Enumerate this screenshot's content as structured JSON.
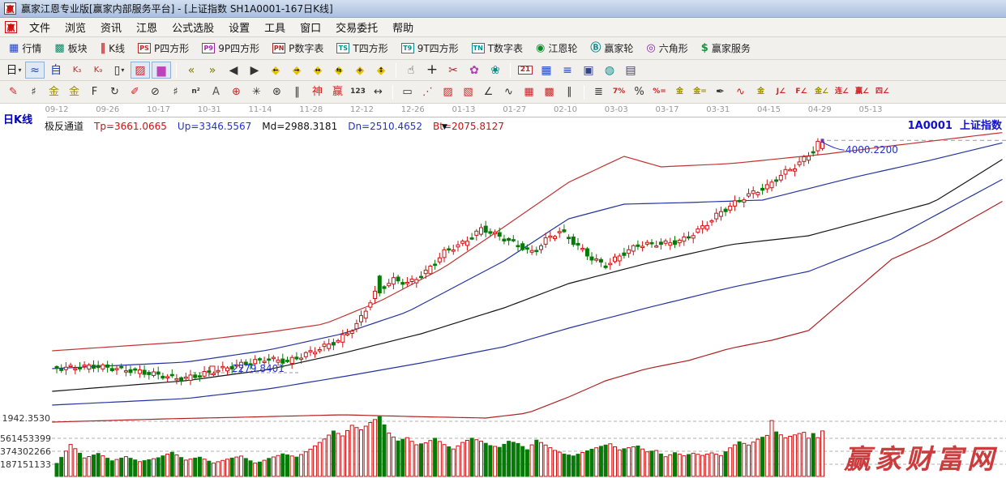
{
  "window": {
    "logo": "赢",
    "title": "赢家江恩专业版[赢家内部服务平台] - [上证指数  SH1A0001-167日K线]"
  },
  "menu": {
    "items": [
      "文件",
      "浏览",
      "资讯",
      "江恩",
      "公式选股",
      "设置",
      "工具",
      "窗口",
      "交易委托",
      "帮助"
    ]
  },
  "toolbar_main": [
    {
      "name": "quotes",
      "label": "行情",
      "icon": "▦",
      "color": "#2244bb"
    },
    {
      "name": "sectors",
      "label": "板块",
      "icon": "▩",
      "color": "#0a8a6a"
    },
    {
      "name": "kline",
      "label": "K线",
      "icon": "‖",
      "color": "#cc2222"
    },
    {
      "name": "p-square",
      "label": "P四方形",
      "icon": "PS",
      "color": "#cc2222",
      "boxed": true
    },
    {
      "name": "9p-square",
      "label": "9P四方形",
      "icon": "P9",
      "color": "#aa22aa",
      "boxed": true
    },
    {
      "name": "p-table",
      "label": "P数字表",
      "icon": "PN",
      "color": "#aa2222",
      "boxed": true
    },
    {
      "name": "t-square",
      "label": "T四方形",
      "icon": "TS",
      "color": "#0a8a8a",
      "boxed": true
    },
    {
      "name": "9t-square",
      "label": "9T四方形",
      "icon": "T9",
      "color": "#0a8a8a",
      "boxed": true
    },
    {
      "name": "t-table",
      "label": "T数字表",
      "icon": "TN",
      "color": "#0a8a8a",
      "boxed": true
    },
    {
      "name": "gann-wheel",
      "label": "江恩轮",
      "icon": "◉",
      "color": "#0a8a2a"
    },
    {
      "name": "winner-wheel",
      "label": "赢家轮",
      "icon": "Ⓑ",
      "color": "#0a8a8a"
    },
    {
      "name": "hexagon",
      "label": "六角形",
      "icon": "◎",
      "color": "#8822aa"
    },
    {
      "name": "winner-service",
      "label": "赢家服务",
      "icon": "$",
      "color": "#0a9a3a"
    }
  ],
  "toolbar_nav": [
    {
      "n": "period-day",
      "g": "日",
      "c": "#222222",
      "drop": true
    },
    {
      "n": "chart-mode",
      "g": "≈",
      "c": "#2244bb",
      "pressed": true
    },
    {
      "n": "f10-info",
      "g": "自",
      "c": "#2244bb"
    },
    {
      "n": "kline-3",
      "g": "K₃",
      "c": "#cc2222",
      "small": true
    },
    {
      "n": "kline-9",
      "g": "K₉",
      "c": "#cc2222",
      "small": true
    },
    {
      "n": "candle-style",
      "g": "▯",
      "c": "#222222",
      "drop": true
    },
    {
      "n": "gann-grade",
      "g": "▨",
      "c": "#cc2222",
      "pressed": true
    },
    {
      "n": "volume-colored",
      "g": "▆",
      "c": "#bb44bb",
      "pressed": true
    },
    {
      "sep": true
    },
    {
      "n": "first-page",
      "g": "«",
      "c": "#7a7a00"
    },
    {
      "n": "last-page",
      "g": "»",
      "c": "#7a7a00"
    },
    {
      "n": "prev-bar",
      "g": "◀",
      "c": "#333333"
    },
    {
      "n": "next-bar",
      "g": "▶",
      "c": "#333333"
    },
    {
      "n": "pan-left",
      "g": "◆",
      "c": "#e3c400",
      "a": "←"
    },
    {
      "n": "pan-right",
      "g": "◆",
      "c": "#e3c400",
      "a": "→"
    },
    {
      "n": "zoom-horizontal",
      "g": "◆",
      "c": "#e3c400",
      "a": "↔"
    },
    {
      "n": "zoom-swap",
      "g": "◆",
      "c": "#e3c400",
      "a": "⇆"
    },
    {
      "n": "zoom-in",
      "g": "◆",
      "c": "#e3c400",
      "a": "+"
    },
    {
      "n": "zoom-all",
      "g": "◆",
      "c": "#e3c400",
      "a": "↕"
    },
    {
      "sep": true
    },
    {
      "n": "drag-hand",
      "g": "☝",
      "c": "#333333"
    },
    {
      "n": "crosshair",
      "g": "+",
      "c": "#222222",
      "big": true
    },
    {
      "n": "measure",
      "g": "✂",
      "c": "#aa2222"
    },
    {
      "n": "pattern-match",
      "g": "✿",
      "c": "#b040b0"
    },
    {
      "n": "smart-match",
      "g": "❀",
      "c": "#0a8a8a"
    },
    {
      "sep": true
    },
    {
      "n": "calendar",
      "txt": "21",
      "c": "#cc2222"
    },
    {
      "n": "calculator",
      "g": "▦",
      "c": "#2244bb"
    },
    {
      "n": "notes",
      "g": "≡",
      "c": "#2244bb"
    },
    {
      "n": "save",
      "g": "▣",
      "c": "#334488"
    },
    {
      "n": "export-web",
      "g": "◍",
      "c": "#0a8a8a"
    },
    {
      "n": "print",
      "g": "▤",
      "c": "#444455"
    }
  ],
  "toolbar_draw": [
    {
      "n": "draw-pencil",
      "g": "✎",
      "c": "#cc2222"
    },
    {
      "n": "gann-lines",
      "g": "♯",
      "c": "#333333"
    },
    {
      "n": "gold-ratio",
      "g": "金",
      "c": "#9a8a00"
    },
    {
      "n": "gold-ratio-ext",
      "g": "金",
      "c": "#9a8a00"
    },
    {
      "n": "fibo-f",
      "g": "F",
      "c": "#333333"
    },
    {
      "n": "spiral",
      "g": "↻",
      "c": "#333333"
    },
    {
      "n": "draw-pencil-2",
      "g": "✐",
      "c": "#cc2222"
    },
    {
      "n": "gann-circle",
      "g": "⊘",
      "c": "#333333"
    },
    {
      "n": "price-lines",
      "g": "♯",
      "c": "#333333"
    },
    {
      "n": "square-n2",
      "txt": "n²",
      "c": "#333333"
    },
    {
      "n": "angle-a",
      "g": "A",
      "c": "#555555"
    },
    {
      "n": "gann-compass",
      "g": "⊕",
      "c": "#cc2222"
    },
    {
      "n": "spider-web",
      "g": "✳",
      "c": "#333333"
    },
    {
      "n": "square-web",
      "g": "⊛",
      "c": "#333333"
    },
    {
      "n": "quote-bars",
      "g": "‖",
      "c": "#333333"
    },
    {
      "n": "shen-tool",
      "g": "神",
      "c": "#cc2222"
    },
    {
      "n": "ying-tool",
      "g": "赢",
      "c": "#cc2222"
    },
    {
      "n": "ruler-123",
      "txt": "123",
      "c": "#333333"
    },
    {
      "n": "width-measure",
      "g": "↔",
      "c": "#333333"
    },
    {
      "sep": true
    },
    {
      "n": "box-select",
      "g": "▭",
      "c": "#333333"
    },
    {
      "n": "fan-lines",
      "g": "⋰",
      "c": "#cc2222"
    },
    {
      "n": "box-diagonal",
      "g": "▨",
      "c": "#cc2222"
    },
    {
      "n": "box-diagonal-2",
      "g": "▧",
      "c": "#cc2222"
    },
    {
      "n": "trend-angle",
      "g": "∠",
      "c": "#333333"
    },
    {
      "n": "zigzag-wave",
      "g": "∿",
      "c": "#333333"
    },
    {
      "n": "grid-red",
      "g": "▦",
      "c": "#cc2222"
    },
    {
      "n": "grid-dense",
      "g": "▩",
      "c": "#cc2222"
    },
    {
      "n": "parallel-lines",
      "g": "∥",
      "c": "#333333"
    },
    {
      "sep": true
    },
    {
      "n": "steps",
      "g": "≣",
      "c": "#333333"
    },
    {
      "n": "percent-7",
      "txt": "7%",
      "c": "#cc2222"
    },
    {
      "n": "percent",
      "g": "%",
      "c": "#333333"
    },
    {
      "n": "percent-line",
      "txt": "%=",
      "c": "#cc2222"
    },
    {
      "n": "gold-circle",
      "txt": "金",
      "c": "#9a8a00"
    },
    {
      "n": "gold-line",
      "txt": "金=",
      "c": "#9a8a00"
    },
    {
      "n": "brush-pen",
      "g": "✒",
      "c": "#333333"
    },
    {
      "n": "a-wave",
      "g": "∿",
      "c": "#cc2222"
    },
    {
      "n": "gold-under",
      "txt": "金",
      "c": "#9a8a00"
    },
    {
      "n": "j-angle",
      "txt": "J∠",
      "c": "#cc2222"
    },
    {
      "n": "f-angle",
      "txt": "F∠",
      "c": "#cc2222"
    },
    {
      "n": "gold-angle",
      "txt": "金∠",
      "c": "#9a8a00"
    },
    {
      "n": "lian-angle",
      "txt": "连∠",
      "c": "#cc2222"
    },
    {
      "n": "ying-angle",
      "txt": "赢∠",
      "c": "#cc2222"
    },
    {
      "n": "si-angle",
      "txt": "四∠",
      "c": "#cc2222"
    }
  ],
  "chart": {
    "panel_label": "日K线",
    "symbol": "1A0001",
    "symbol_name": "上证指数",
    "indicator": {
      "name": "极反通道",
      "params": [
        {
          "key": "Tp",
          "text": "Tp=3661.0665",
          "color": "#cc1111"
        },
        {
          "key": "Up",
          "text": "Up=3346.5567",
          "color": "#2233cc"
        },
        {
          "key": "Md",
          "text": "Md=2988.3181",
          "color": "#111111"
        },
        {
          "key": "Dn",
          "text": "Dn=2510.4652",
          "color": "#2233cc"
        },
        {
          "key": "Bt",
          "text": "Bt=2075.8127",
          "color": "#cc1111"
        }
      ]
    },
    "dates": [
      "09-12",
      "09-26",
      "10-17",
      "10-31",
      "11-14",
      "11-28",
      "12-12",
      "12-26",
      "01-13",
      "01-27",
      "02-10",
      "03-03",
      "03-17",
      "03-31",
      "04-15",
      "04-29",
      "05-13"
    ],
    "levels": {
      "last_high": "4000.2200",
      "mid": "2279.8401",
      "floor": "1942.3530"
    },
    "volume_axis": [
      "561453399",
      "374302266",
      "187151133"
    ],
    "watermark": "赢家财富网",
    "dropdown_glyph": "▼"
  },
  "chart_data": {
    "type": "candlestick",
    "title": "上证指数 SH1A0001-167日K线",
    "bars": 167,
    "x_dates": [
      "09-12",
      "09-26",
      "10-17",
      "10-31",
      "11-14",
      "11-28",
      "12-12",
      "12-26",
      "01-13",
      "01-27",
      "02-10",
      "03-03",
      "03-17",
      "03-31",
      "04-15",
      "04-29",
      "05-13"
    ],
    "price_anchors": [
      [
        0,
        2310
      ],
      [
        9,
        2328
      ],
      [
        18,
        2292
      ],
      [
        28,
        2232
      ],
      [
        37,
        2310
      ],
      [
        46,
        2382
      ],
      [
        51,
        2364
      ],
      [
        57,
        2448
      ],
      [
        62,
        2520
      ],
      [
        66,
        2640
      ],
      [
        70,
        2880
      ],
      [
        74,
        2970
      ],
      [
        77,
        2940
      ],
      [
        81,
        3030
      ],
      [
        85,
        3180
      ],
      [
        89,
        3240
      ],
      [
        93,
        3348
      ],
      [
        96,
        3300
      ],
      [
        100,
        3240
      ],
      [
        104,
        3168
      ],
      [
        107,
        3270
      ],
      [
        110,
        3330
      ],
      [
        113,
        3240
      ],
      [
        117,
        3120
      ],
      [
        120,
        3072
      ],
      [
        123,
        3150
      ],
      [
        127,
        3228
      ],
      [
        134,
        3240
      ],
      [
        137,
        3270
      ],
      [
        141,
        3360
      ],
      [
        144,
        3450
      ],
      [
        148,
        3540
      ],
      [
        151,
        3600
      ],
      [
        155,
        3660
      ],
      [
        158,
        3750
      ],
      [
        161,
        3810
      ],
      [
        163,
        3870
      ],
      [
        165,
        3930
      ],
      [
        166,
        3992
      ]
    ],
    "special_bars": {
      "70": [
        2995,
        2870,
        3005,
        2845
      ],
      "166": [
        3940,
        3988,
        4000.22,
        3925
      ]
    },
    "last_high": 4000.22,
    "key_levels": [
      4000.22,
      2279.8401,
      1942.353
    ],
    "channel": {
      "name": "极反通道",
      "Tp": 3661.0665,
      "Up": 3346.5567,
      "Md": 2988.3181,
      "Dn": 2510.4652,
      "Bt": 2075.8127,
      "lines": {
        "top": {
          "color": "#c23232",
          "pts": [
            [
              -1,
              2442
            ],
            [
              28,
              2508
            ],
            [
              46,
              2580
            ],
            [
              58,
              2640
            ],
            [
              70,
              2808
            ],
            [
              84,
              3060
            ],
            [
              97,
              3360
            ],
            [
              111,
              3690
            ],
            [
              123,
              3882
            ],
            [
              131,
              3804
            ],
            [
              146,
              3828
            ],
            [
              167,
              3900
            ],
            [
              181,
              3960
            ],
            [
              206,
              4062
            ]
          ]
        },
        "up": {
          "color": "#2333a0",
          "pts": [
            [
              -1,
              2310
            ],
            [
              28,
              2358
            ],
            [
              46,
              2448
            ],
            [
              62,
              2568
            ],
            [
              76,
              2730
            ],
            [
              86,
              2910
            ],
            [
              97,
              3108
            ],
            [
              111,
              3420
            ],
            [
              123,
              3528
            ],
            [
              137,
              3540
            ],
            [
              153,
              3558
            ],
            [
              172,
              3720
            ],
            [
              190,
              3858
            ],
            [
              206,
              3990
            ]
          ]
        },
        "md": {
          "color": "#151515",
          "pts": [
            [
              -1,
              2142
            ],
            [
              28,
              2220
            ],
            [
              46,
              2304
            ],
            [
              62,
              2424
            ],
            [
              79,
              2568
            ],
            [
              97,
              2760
            ],
            [
              111,
              2940
            ],
            [
              128,
              3090
            ],
            [
              146,
              3228
            ],
            [
              163,
              3294
            ],
            [
              190,
              3540
            ],
            [
              206,
              3880
            ]
          ]
        },
        "dn": {
          "color": "#2333a0",
          "pts": [
            [
              -1,
              2040
            ],
            [
              28,
              2088
            ],
            [
              46,
              2160
            ],
            [
              62,
              2250
            ],
            [
              79,
              2352
            ],
            [
              97,
              2472
            ],
            [
              111,
              2610
            ],
            [
              128,
              2760
            ],
            [
              146,
              2910
            ],
            [
              163,
              3030
            ],
            [
              181,
              3270
            ],
            [
              206,
              3730
            ]
          ]
        },
        "bt": {
          "color": "#b02020",
          "pts": [
            [
              -1,
              1914
            ],
            [
              24,
              1938
            ],
            [
              40,
              1950
            ],
            [
              62,
              1968
            ],
            [
              76,
              1956
            ],
            [
              93,
              1944
            ],
            [
              102,
              1980
            ],
            [
              111,
              2100
            ],
            [
              119,
              2220
            ],
            [
              128,
              2310
            ],
            [
              137,
              2370
            ],
            [
              146,
              2460
            ],
            [
              155,
              2520
            ],
            [
              163,
              2592
            ],
            [
              181,
              3120
            ],
            [
              190,
              3258
            ],
            [
              206,
              3568
            ]
          ]
        }
      }
    },
    "volume_axis_values": [
      561453399,
      374302266,
      187151133
    ],
    "volume_anchors": [
      [
        0,
        20
      ],
      [
        3,
        45
      ],
      [
        6,
        24
      ],
      [
        9,
        28
      ],
      [
        12,
        18
      ],
      [
        15,
        22
      ],
      [
        18,
        16
      ],
      [
        22,
        20
      ],
      [
        25,
        26
      ],
      [
        28,
        18
      ],
      [
        31,
        22
      ],
      [
        34,
        16
      ],
      [
        37,
        22
      ],
      [
        40,
        28
      ],
      [
        43,
        20
      ],
      [
        46,
        26
      ],
      [
        49,
        30
      ],
      [
        52,
        24
      ],
      [
        55,
        32
      ],
      [
        58,
        42
      ],
      [
        60,
        50
      ],
      [
        62,
        44
      ],
      [
        64,
        55
      ],
      [
        66,
        50
      ],
      [
        68,
        58
      ],
      [
        70,
        65
      ],
      [
        72,
        48
      ],
      [
        74,
        40
      ],
      [
        76,
        45
      ],
      [
        78,
        38
      ],
      [
        80,
        42
      ],
      [
        82,
        50
      ],
      [
        84,
        44
      ],
      [
        86,
        40
      ],
      [
        88,
        52
      ],
      [
        90,
        55
      ],
      [
        92,
        48
      ],
      [
        94,
        40
      ],
      [
        96,
        36
      ],
      [
        98,
        42
      ],
      [
        100,
        38
      ],
      [
        102,
        30
      ],
      [
        104,
        40
      ],
      [
        106,
        34
      ],
      [
        108,
        28
      ],
      [
        110,
        24
      ],
      [
        112,
        22
      ],
      [
        114,
        26
      ],
      [
        116,
        30
      ],
      [
        118,
        34
      ],
      [
        120,
        38
      ],
      [
        122,
        32
      ],
      [
        124,
        36
      ],
      [
        126,
        40
      ],
      [
        128,
        34
      ],
      [
        130,
        38
      ],
      [
        132,
        30
      ],
      [
        134,
        34
      ],
      [
        136,
        28
      ],
      [
        138,
        30
      ],
      [
        140,
        26
      ],
      [
        142,
        28
      ],
      [
        144,
        24
      ],
      [
        146,
        32
      ],
      [
        148,
        38
      ],
      [
        150,
        34
      ],
      [
        152,
        40
      ],
      [
        154,
        44
      ],
      [
        155,
        60
      ],
      [
        156,
        48
      ],
      [
        158,
        42
      ],
      [
        160,
        46
      ],
      [
        162,
        50
      ],
      [
        163,
        44
      ],
      [
        164,
        50
      ],
      [
        165,
        46
      ],
      [
        166,
        55
      ]
    ],
    "colors": {
      "up": "#cc1111",
      "down": "#067a06",
      "grid": "#b0b0b0",
      "dash_level": "#999999"
    }
  }
}
